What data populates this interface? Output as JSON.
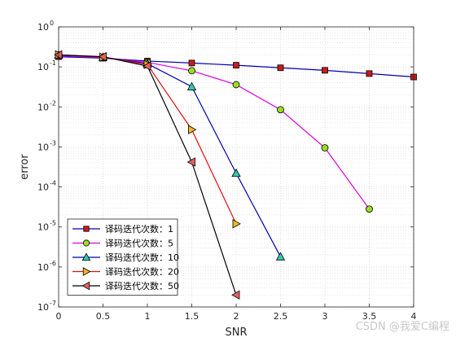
{
  "chart_data": {
    "type": "line",
    "xlabel": "SNR",
    "ylabel": "error",
    "xlim": [
      0,
      4
    ],
    "ylim_log10": [
      -7,
      0
    ],
    "yscale": "log",
    "grid": true,
    "minor_grid": true,
    "legend_position": "bottom-left",
    "x_ticks": [
      "0",
      "0.5",
      "1",
      "1.5",
      "2",
      "2.5",
      "3",
      "3.5",
      "4"
    ],
    "y_tick_exponents": [
      "0",
      "-1",
      "-2",
      "-3",
      "-4",
      "-5",
      "-6",
      "-7"
    ],
    "series": [
      {
        "name": "译码迭代次数：1",
        "color": "#0000aa",
        "marker_color": "#cc1a1a",
        "marker": "square",
        "x": [
          0,
          0.5,
          1,
          1.5,
          2,
          2.5,
          3,
          3.5,
          4
        ],
        "y": [
          0.18,
          0.165,
          0.14,
          0.125,
          0.11,
          0.095,
          0.082,
          0.068,
          0.056
        ]
      },
      {
        "name": "译码迭代次数：5",
        "color": "#dd00dd",
        "marker_color": "#99dd22",
        "marker": "circle",
        "x": [
          0,
          0.5,
          1,
          1.5,
          2,
          2.5,
          3,
          3.5
        ],
        "y": [
          0.19,
          0.17,
          0.13,
          0.08,
          0.036,
          0.0085,
          0.00095,
          2.8e-05
        ]
      },
      {
        "name": "译码迭代次数：10",
        "color": "#0000aa",
        "marker_color": "#33ccaa",
        "marker": "triangle-up",
        "x": [
          0,
          0.5,
          1,
          1.5,
          2,
          2.5
        ],
        "y": [
          0.2,
          0.175,
          0.12,
          0.032,
          0.00022,
          1.8e-06
        ]
      },
      {
        "name": "译码迭代次数：20",
        "color": "#dd1111",
        "marker_color": "#eebb22",
        "marker": "triangle-right",
        "x": [
          0,
          0.5,
          1,
          1.5,
          2
        ],
        "y": [
          0.2,
          0.175,
          0.115,
          0.0027,
          1.2e-05
        ]
      },
      {
        "name": "译码迭代次数：50",
        "color": "#000000",
        "marker_color": "#e86060",
        "marker": "triangle-left",
        "x": [
          0,
          0.5,
          1,
          1.5,
          2
        ],
        "y": [
          0.2,
          0.18,
          0.105,
          0.00042,
          2e-07
        ]
      }
    ]
  },
  "watermark": "CSDN @我爱C编程"
}
